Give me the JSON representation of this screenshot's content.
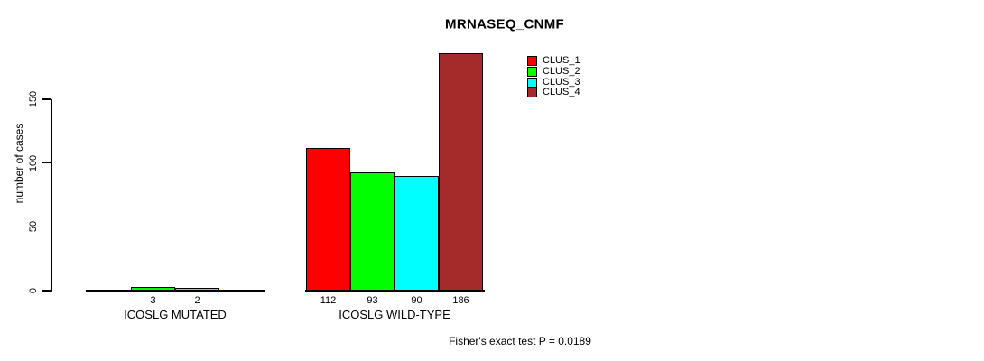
{
  "chart_data": {
    "type": "bar",
    "title": "MRNASEQ_CNMF",
    "ylabel": "number of cases",
    "xlabel": "",
    "annotation": "Fisher's exact test P = 0.0189",
    "categories": [
      "ICOSLG MUTATED",
      "ICOSLG WILD-TYPE"
    ],
    "series": [
      {
        "name": "CLUS_1",
        "color": "#ff0000",
        "values": [
          0,
          112
        ]
      },
      {
        "name": "CLUS_2",
        "color": "#00ff00",
        "values": [
          3,
          93
        ]
      },
      {
        "name": "CLUS_3",
        "color": "#00ffff",
        "values": [
          2,
          90
        ]
      },
      {
        "name": "CLUS_4",
        "color": "#a52a2a",
        "values": [
          0,
          186
        ]
      }
    ],
    "y_ticks": [
      0,
      50,
      100,
      150
    ],
    "ylim": [
      0,
      150
    ],
    "grid": false,
    "legend_position": "top-right",
    "bar_value_labels_shown": true,
    "zero_bars_drawn_flat": true
  }
}
